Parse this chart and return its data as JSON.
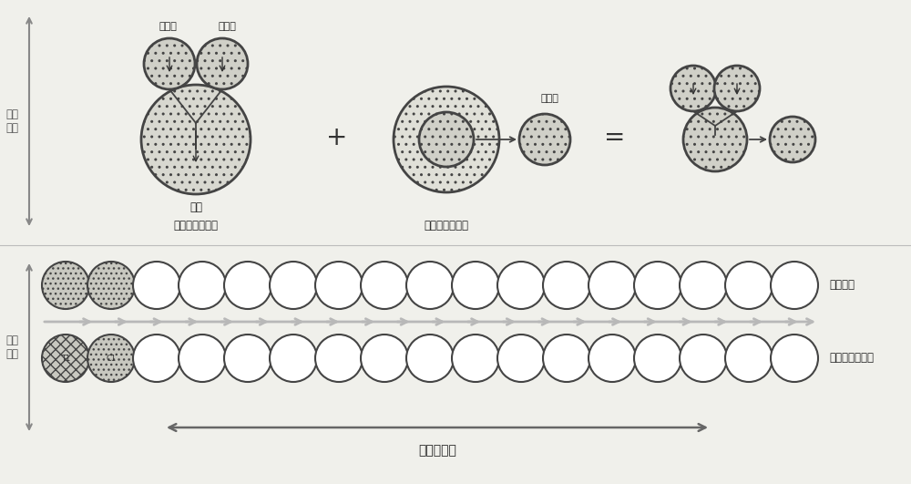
{
  "bg_color": "#f0f0eb",
  "top_label_pipe_axis": "管的\n轴线",
  "bottom_label_pipe_axis": "管的\n轴线",
  "label_receive1": "接收１",
  "label_receive2": "接收２",
  "label_receive3": "接收３",
  "label_send": "发送",
  "label_axial_crack": "轴向的裂缝检查",
  "label_circ_crack": "周向的裂缝检查",
  "label_axial_receive": "轴向接收",
  "label_send_circ": "发送和周向接收",
  "label_probe_circ": "探头的周向",
  "plus_sign": "+",
  "equals_sign": "=",
  "n_circles": 17,
  "row_r": 0.26
}
